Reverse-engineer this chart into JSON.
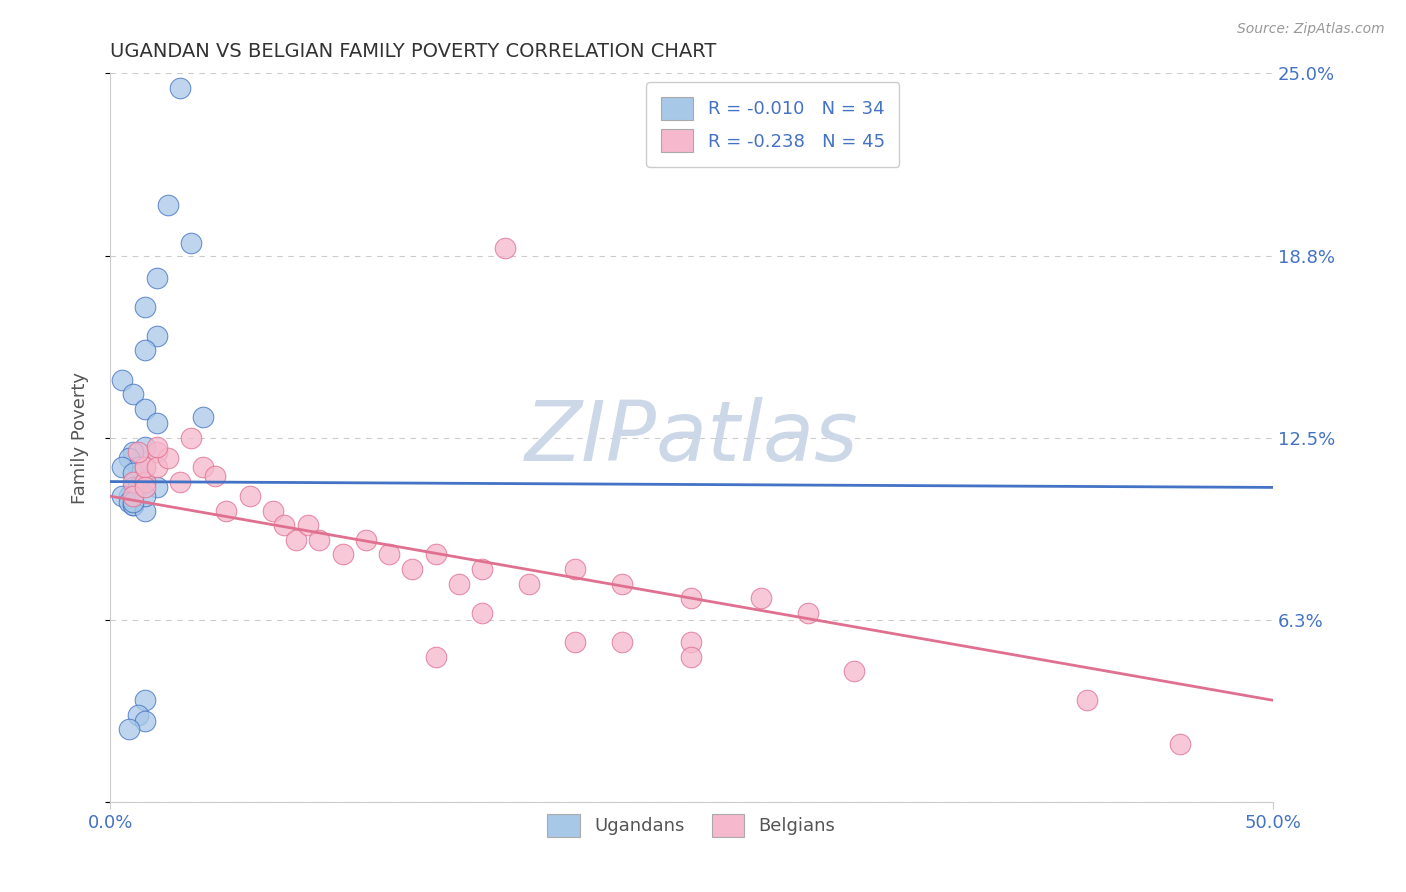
{
  "title": "UGANDAN VS BELGIAN FAMILY POVERTY CORRELATION CHART",
  "source": "Source: ZipAtlas.com",
  "ylabel": "Family Poverty",
  "legend_label1": "Ugandans",
  "legend_label2": "Belgians",
  "R1": -0.01,
  "N1": 34,
  "R2": -0.238,
  "N2": 45,
  "xlim": [
    0.0,
    50.0
  ],
  "ylim": [
    0.0,
    25.0
  ],
  "yticks": [
    0.0,
    6.25,
    12.5,
    18.75,
    25.0
  ],
  "ytick_labels": [
    "",
    "6.3%",
    "12.5%",
    "18.8%",
    "25.0%"
  ],
  "color_ugandan": "#a8c8e8",
  "color_belgian": "#f5b8cc",
  "color_line1": "#4472c4",
  "color_line2": "#e07090",
  "color_axis_labels": "#4472c4",
  "color_grid": "#cccccc",
  "color_title": "#333333",
  "color_source": "#999999",
  "watermark_color": "#ccd8e8",
  "ugandan_x": [
    3.0,
    2.5,
    3.5,
    2.0,
    1.5,
    2.0,
    1.5,
    0.5,
    1.0,
    1.5,
    2.0,
    1.5,
    1.0,
    0.8,
    1.2,
    0.5,
    1.0,
    1.5,
    1.0,
    0.8,
    1.0,
    1.2,
    0.5,
    0.8,
    1.0,
    1.5,
    2.0,
    1.5,
    1.0,
    4.0,
    1.5,
    1.2,
    1.5,
    0.8
  ],
  "ugandan_y": [
    24.5,
    20.5,
    19.2,
    18.0,
    17.0,
    16.0,
    15.5,
    14.5,
    14.0,
    13.5,
    13.0,
    12.2,
    12.0,
    11.8,
    11.5,
    11.5,
    11.3,
    11.0,
    10.8,
    10.5,
    10.2,
    10.8,
    10.5,
    10.3,
    10.2,
    10.0,
    10.8,
    10.5,
    10.3,
    13.2,
    3.5,
    3.0,
    2.8,
    2.5
  ],
  "belgian_x": [
    17.0,
    1.5,
    1.0,
    2.0,
    1.5,
    1.0,
    1.5,
    1.2,
    2.0,
    2.5,
    2.0,
    1.5,
    3.0,
    4.0,
    4.5,
    3.5,
    5.0,
    6.0,
    7.0,
    7.5,
    8.0,
    8.5,
    9.0,
    10.0,
    11.0,
    12.0,
    13.0,
    14.0,
    15.0,
    16.0,
    18.0,
    20.0,
    22.0,
    25.0,
    28.0,
    30.0,
    25.0,
    20.0,
    16.0,
    14.0,
    22.0,
    25.0,
    32.0,
    42.0,
    46.0
  ],
  "belgian_y": [
    19.0,
    11.5,
    11.0,
    12.0,
    11.0,
    10.5,
    11.5,
    12.0,
    11.5,
    11.8,
    12.2,
    10.8,
    11.0,
    11.5,
    11.2,
    12.5,
    10.0,
    10.5,
    10.0,
    9.5,
    9.0,
    9.5,
    9.0,
    8.5,
    9.0,
    8.5,
    8.0,
    8.5,
    7.5,
    8.0,
    7.5,
    8.0,
    7.5,
    7.0,
    7.0,
    6.5,
    5.5,
    5.5,
    6.5,
    5.0,
    5.5,
    5.0,
    4.5,
    3.5,
    2.0
  ],
  "trend_ugandan_y0": 11.0,
  "trend_ugandan_y1": 10.8,
  "trend_belgian_y0": 10.5,
  "trend_belgian_y1": 3.5
}
